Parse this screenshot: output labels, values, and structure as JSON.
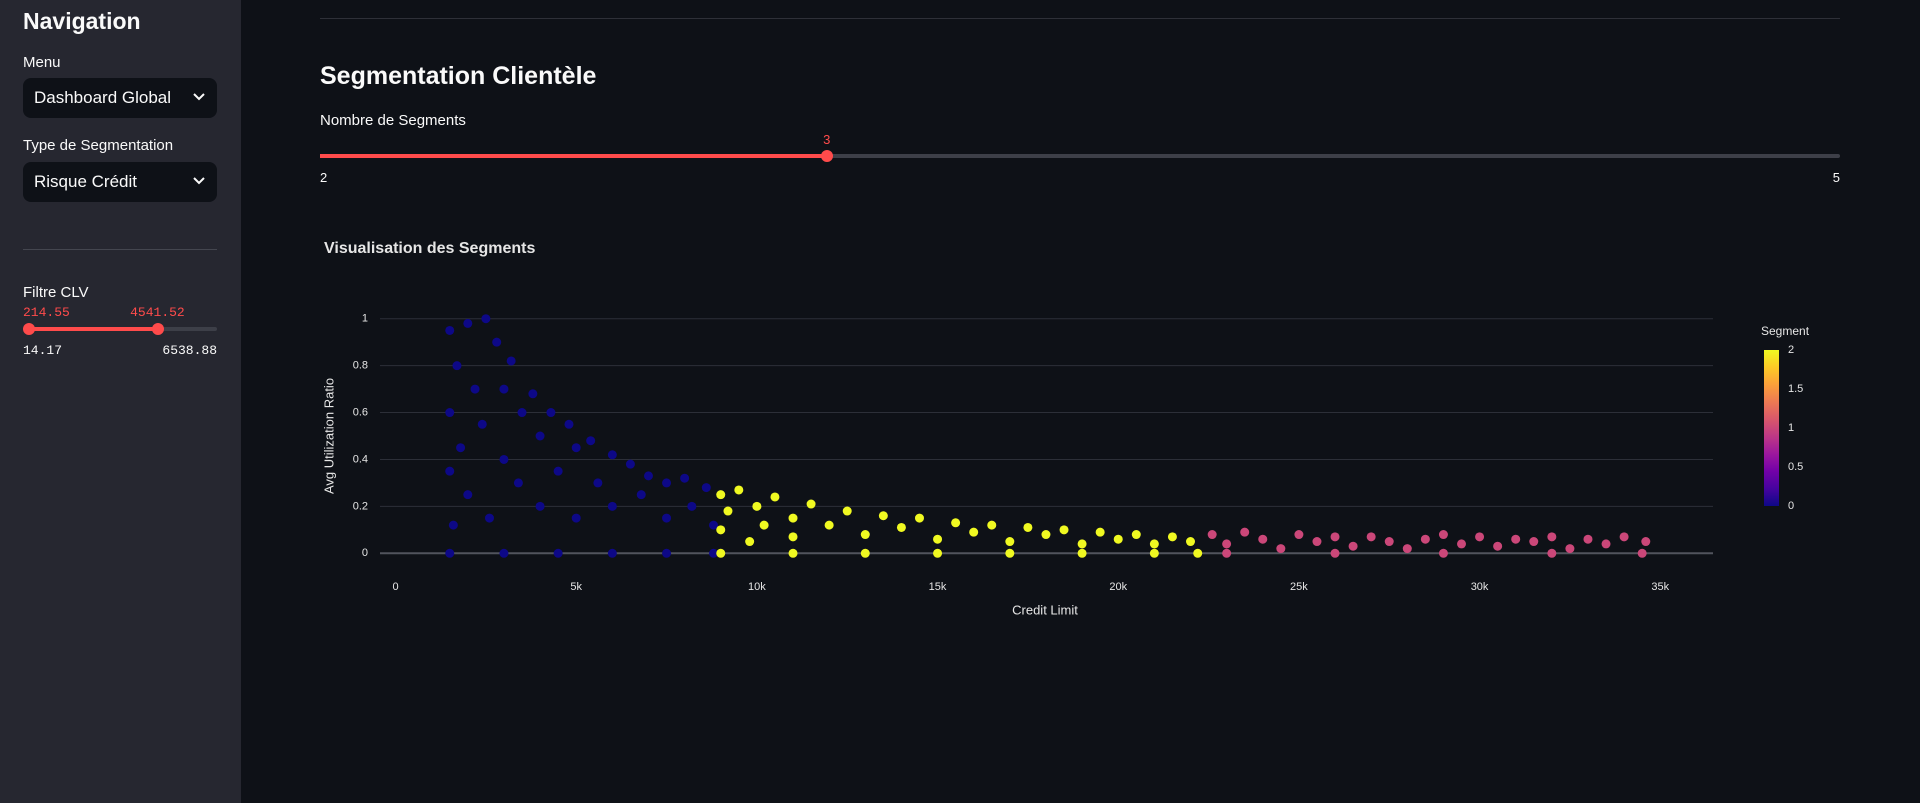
{
  "sidebar": {
    "title": "Navigation",
    "menu": {
      "label": "Menu",
      "value": "Dashboard Global"
    },
    "segmentation_type": {
      "label": "Type de Segmentation",
      "value": "Risque Crédit"
    },
    "clv_filter": {
      "label": "Filtre CLV",
      "min": 14.17,
      "max": 6538.88,
      "values": [
        214.55,
        4541.52
      ]
    }
  },
  "main": {
    "title": "Segmentation Clientèle",
    "segments_slider": {
      "label": "Nombre de Segments",
      "min": 2,
      "max": 5,
      "value": 3
    }
  },
  "chart_data": {
    "type": "scatter",
    "title": "Visualisation des Segments",
    "x_label": "Credit Limit",
    "y_label": "Avg Utilization Ratio",
    "x": [
      1500,
      1500,
      1500,
      1600,
      1700,
      1800,
      2000,
      2000,
      2200,
      2400,
      2500,
      2600,
      2800,
      3000,
      3000,
      3200,
      3400,
      3500,
      3800,
      4000,
      4000,
      4300,
      4500,
      4800,
      5000,
      5000,
      5400,
      5600,
      6000,
      6000,
      6500,
      6800,
      7000,
      7500,
      7500,
      8000,
      8200,
      8600,
      8800,
      1500,
      3000,
      4500,
      6000,
      7500,
      8800,
      9000,
      9000,
      9200,
      9500,
      9800,
      10000,
      10200,
      10500,
      11000,
      11000,
      11500,
      12000,
      12500,
      13000,
      13500,
      14000,
      14500,
      15000,
      15500,
      16000,
      16500,
      17000,
      17500,
      18000,
      18500,
      19000,
      19500,
      20000,
      20500,
      21000,
      21500,
      22000,
      9000,
      11000,
      13000,
      15000,
      17000,
      19000,
      21000,
      22200,
      22600,
      23000,
      23500,
      24000,
      24500,
      25000,
      25500,
      26000,
      26500,
      27000,
      27500,
      28000,
      28500,
      29000,
      29500,
      30000,
      30500,
      31000,
      31500,
      32000,
      32500,
      33000,
      33500,
      34000,
      34600,
      23000,
      26000,
      29000,
      32000,
      34500
    ],
    "y": [
      0.95,
      0.6,
      0.35,
      0.12,
      0.8,
      0.45,
      0.98,
      0.25,
      0.7,
      0.55,
      1,
      0.15,
      0.9,
      0.4,
      0.7,
      0.82,
      0.3,
      0.6,
      0.68,
      0.2,
      0.5,
      0.6,
      0.35,
      0.55,
      0.15,
      0.45,
      0.48,
      0.3,
      0.42,
      0.2,
      0.38,
      0.25,
      0.33,
      0.15,
      0.3,
      0.32,
      0.2,
      0.28,
      0.12,
      0,
      0,
      0,
      0,
      0,
      0,
      0.25,
      0.1,
      0.18,
      0.27,
      0.05,
      0.2,
      0.12,
      0.24,
      0.15,
      0.07,
      0.21,
      0.12,
      0.18,
      0.08,
      0.16,
      0.11,
      0.15,
      0.06,
      0.13,
      0.09,
      0.12,
      0.05,
      0.11,
      0.08,
      0.1,
      0.04,
      0.09,
      0.06,
      0.08,
      0.04,
      0.07,
      0.05,
      0,
      0,
      0,
      0,
      0,
      0,
      0,
      0,
      0.08,
      0.04,
      0.09,
      0.06,
      0.02,
      0.08,
      0.05,
      0.07,
      0.03,
      0.07,
      0.05,
      0.02,
      0.06,
      0.08,
      0.04,
      0.07,
      0.03,
      0.06,
      0.05,
      0.07,
      0.02,
      0.06,
      0.04,
      0.07,
      0.05,
      0,
      0,
      0,
      0,
      0
    ],
    "color_values": [
      0,
      0,
      0,
      0,
      0,
      0,
      0,
      0,
      0,
      0,
      0,
      0,
      0,
      0,
      0,
      0,
      0,
      0,
      0,
      0,
      0,
      0,
      0,
      0,
      0,
      0,
      0,
      0,
      0,
      0,
      0,
      0,
      0,
      0,
      0,
      0,
      0,
      0,
      0,
      0,
      0,
      0,
      0,
      0,
      0,
      2,
      2,
      2,
      2,
      2,
      2,
      2,
      2,
      2,
      2,
      2,
      2,
      2,
      2,
      2,
      2,
      2,
      2,
      2,
      2,
      2,
      2,
      2,
      2,
      2,
      2,
      2,
      2,
      2,
      2,
      2,
      2,
      2,
      2,
      2,
      2,
      2,
      2,
      2,
      2,
      1,
      1,
      1,
      1,
      1,
      1,
      1,
      1,
      1,
      1,
      1,
      1,
      1,
      1,
      1,
      1,
      1,
      1,
      1,
      1,
      1,
      1,
      1,
      1,
      1,
      1,
      1,
      1,
      1,
      1
    ],
    "xlim": [
      -430,
      36460
    ],
    "ylim": [
      -0.05,
      1.05
    ],
    "xticks": [
      0,
      {
        "value": 5000,
        "label": "5k"
      },
      {
        "value": 10000,
        "label": "10k"
      },
      {
        "value": 15000,
        "label": "15k"
      },
      {
        "value": 20000,
        "label": "20k"
      },
      {
        "value": 25000,
        "label": "25k"
      },
      {
        "value": 30000,
        "label": "30k"
      },
      {
        "value": 35000,
        "label": "35k"
      }
    ],
    "yticks": [
      0,
      0.2,
      0.4,
      0.6,
      0.8,
      1
    ],
    "grid": true,
    "colorbar": {
      "title": "Segment",
      "lim": [
        0,
        2
      ],
      "ticks": [
        0,
        0.5,
        1,
        1.5,
        2
      ],
      "colorscale": [
        "#0d0887",
        "#46039f",
        "#7201a8",
        "#9c179e",
        "#bd3786",
        "#d8576b",
        "#ed7953",
        "#fb9f3a",
        "#fdca26",
        "#f0f921"
      ]
    }
  }
}
